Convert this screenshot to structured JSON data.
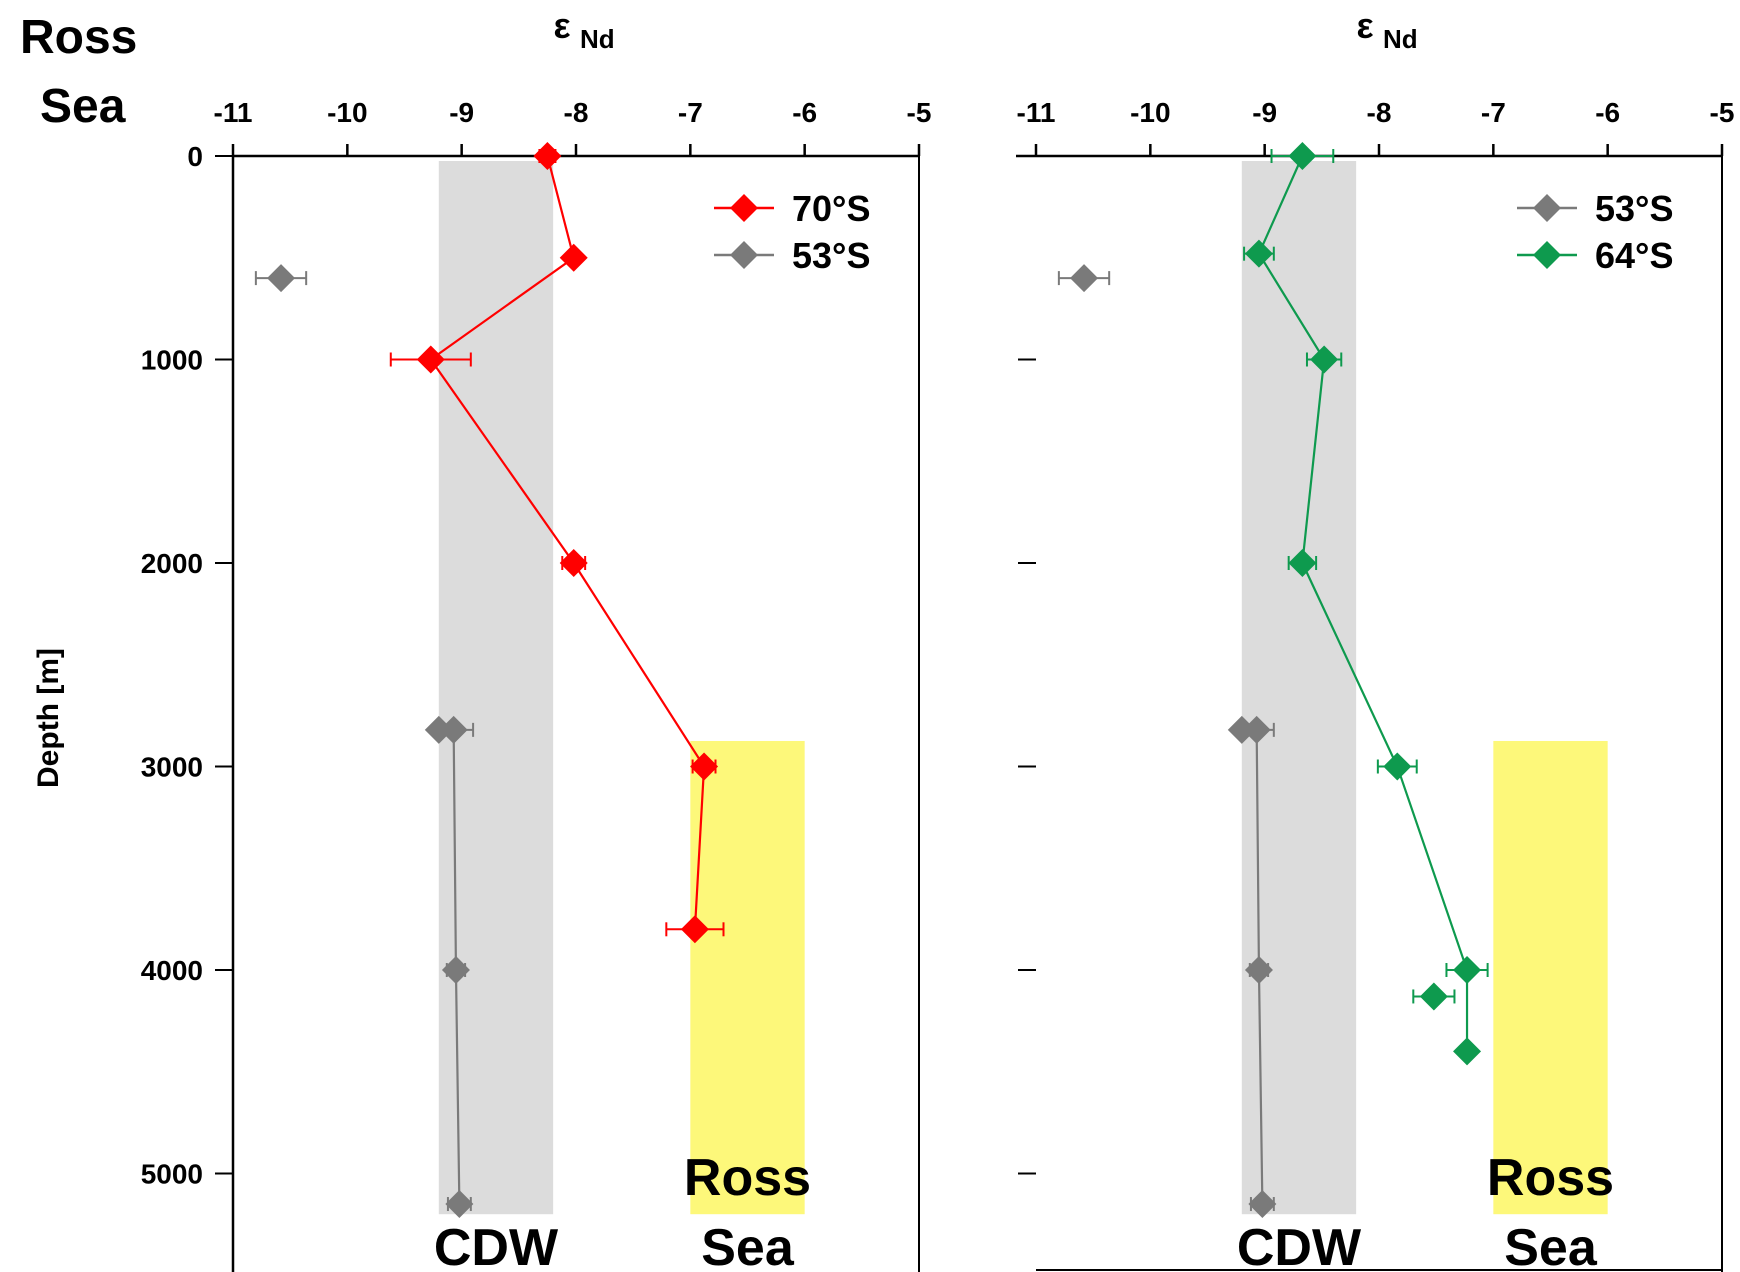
{
  "figure": {
    "region_label_line1": "Ross",
    "region_label_line2": "Sea",
    "y_axis_label": "Depth [m]"
  },
  "colors": {
    "red_series": "#ff0000",
    "gray_series": "#7a7a7a",
    "green_series": "#0e9a4e",
    "cdw_band": "#dcdcdc",
    "ross_band": "#fdf87a"
  },
  "chart_data": [
    {
      "type": "scatter",
      "panel": "left",
      "xlabel_symbol": "ε",
      "xlabel_sub": "Nd",
      "ylabel": "Depth [m]",
      "xlim": [
        -11,
        -5
      ],
      "ylim": [
        5200,
        0
      ],
      "x_ticks": [
        "-11",
        "-10",
        "-9",
        "-8",
        "-7",
        "-6",
        "-5"
      ],
      "y_ticks": [
        "0",
        "1000",
        "2000",
        "3000",
        "4000",
        "5000"
      ],
      "legend": [
        "70°S",
        "53°S"
      ],
      "legend_position": "top-right",
      "bands": [
        {
          "label": "CDW",
          "x": [
            -9.2,
            -8.2
          ],
          "y": [
            0,
            5200
          ]
        },
        {
          "label_line1": "Ross",
          "label_line2": "Sea",
          "x": [
            -7,
            -6
          ],
          "y": [
            2850,
            5200
          ]
        }
      ],
      "series": [
        {
          "name": "70°S",
          "connected": true,
          "points": [
            {
              "x": -8.25,
              "y": 0,
              "xerr": 0.07
            },
            {
              "x": -8.02,
              "y": 500,
              "xerr": 0.05
            },
            {
              "x": -9.27,
              "y": 1000,
              "xerr": 0.35
            },
            {
              "x": -8.02,
              "y": 2000,
              "xerr": 0.1
            },
            {
              "x": -6.88,
              "y": 3000,
              "xerr": 0.1
            },
            {
              "x": -6.96,
              "y": 3800,
              "xerr": 0.25
            }
          ]
        },
        {
          "name": "53°S",
          "connected": true,
          "points": [
            {
              "x": -9.07,
              "y": 2820,
              "xerr": 0.17
            },
            {
              "x": -9.05,
              "y": 4000,
              "xerr": 0.08
            },
            {
              "x": -9.02,
              "y": 5150,
              "xerr": 0.1
            }
          ]
        },
        {
          "name": "53°S",
          "connected": false,
          "points": [
            {
              "x": -10.58,
              "y": 600,
              "xerr": 0.22
            },
            {
              "x": -9.2,
              "y": 2820,
              "xerr": 0.05
            }
          ]
        }
      ]
    },
    {
      "type": "scatter",
      "panel": "right",
      "xlabel_symbol": "ε",
      "xlabel_sub": "Nd",
      "xlim": [
        -11,
        -5
      ],
      "ylim": [
        5200,
        0
      ],
      "x_ticks": [
        "-11",
        "-10",
        "-9",
        "-8",
        "-7",
        "-6",
        "-5"
      ],
      "y_ticks": [],
      "legend": [
        "53°S",
        "64°S"
      ],
      "legend_position": "top-right",
      "bands": [
        {
          "label": "CDW",
          "x": [
            -9.2,
            -8.2
          ],
          "y": [
            0,
            5200
          ]
        },
        {
          "label_line1": "Ross",
          "label_line2": "Sea",
          "x": [
            -7,
            -6
          ],
          "y": [
            2850,
            5200
          ]
        }
      ],
      "series": [
        {
          "name": "64°S",
          "connected": true,
          "points": [
            {
              "x": -8.67,
              "y": 0,
              "xerr": 0.27
            },
            {
              "x": -9.05,
              "y": 480,
              "xerr": 0.13
            },
            {
              "x": -8.48,
              "y": 1000,
              "xerr": 0.15
            },
            {
              "x": -8.67,
              "y": 2000,
              "xerr": 0.12
            },
            {
              "x": -7.84,
              "y": 3000,
              "xerr": 0.17
            },
            {
              "x": -7.23,
              "y": 4000,
              "xerr": 0.18
            },
            {
              "x": -7.23,
              "y": 4400,
              "xerr": 0.05
            }
          ]
        },
        {
          "name": "64°S",
          "connected": false,
          "points": [
            {
              "x": -7.52,
              "y": 4130,
              "xerr": 0.18
            }
          ]
        },
        {
          "name": "53°S",
          "connected": true,
          "points": [
            {
              "x": -9.07,
              "y": 2820,
              "xerr": 0.15
            },
            {
              "x": -9.05,
              "y": 4000,
              "xerr": 0.08
            },
            {
              "x": -9.02,
              "y": 5150,
              "xerr": 0.1
            }
          ]
        },
        {
          "name": "53°S",
          "connected": false,
          "points": [
            {
              "x": -10.58,
              "y": 600,
              "xerr": 0.22
            },
            {
              "x": -9.2,
              "y": 2820,
              "xerr": 0.05
            }
          ]
        }
      ]
    }
  ]
}
